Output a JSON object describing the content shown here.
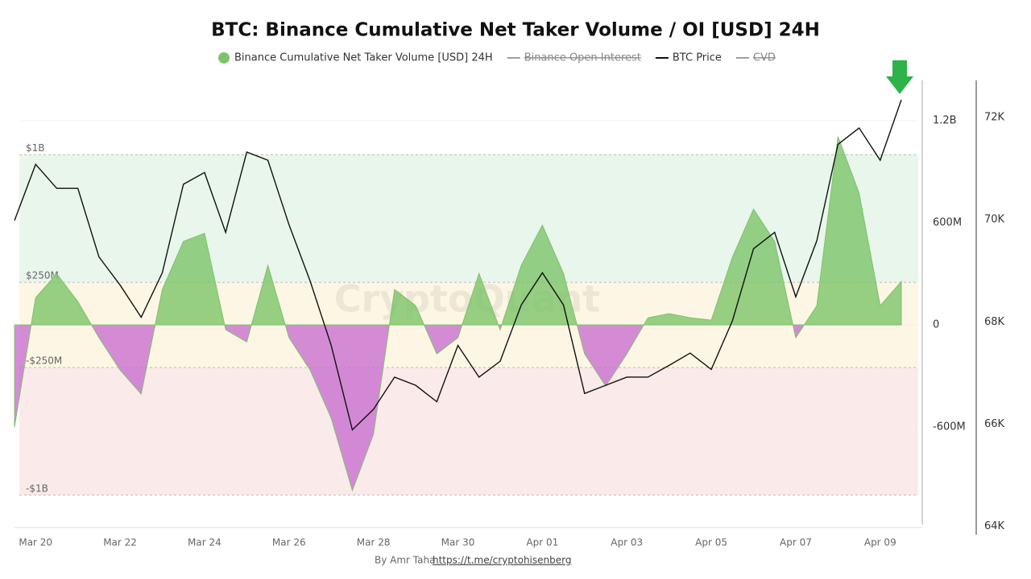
{
  "chart_data": {
    "type": "area-line",
    "title": "BTC: Binance Cumulative Net Taker Volume / OI [USD] 24H",
    "watermark": "CryptoQuant",
    "footer": {
      "author": "By Amr Taha",
      "link": "https://t.me/cryptohisenberg"
    },
    "categories": [
      null,
      "Mar 20",
      null,
      null,
      null,
      "Mar 22",
      null,
      null,
      null,
      "Mar 24",
      null,
      null,
      null,
      "Mar 26",
      null,
      null,
      null,
      "Mar 28",
      null,
      null,
      null,
      "Mar 30",
      null,
      null,
      null,
      "Apr 01",
      null,
      null,
      null,
      "Apr 03",
      null,
      null,
      null,
      "Apr 05",
      null,
      null,
      null,
      "Apr 07",
      null,
      null,
      null,
      "Apr 09",
      null
    ],
    "series": [
      {
        "name": "Binance Cumulative Net Taker Volume [USD] 24H",
        "color": "#7cc46a",
        "negative_color": "#c970d0",
        "visible": true,
        "values": [
          -600000000,
          160000000,
          300000000,
          137000000,
          -75000000,
          -265000000,
          -406000000,
          208000000,
          491000000,
          538000000,
          -28000000,
          -100000000,
          350000000,
          -75000000,
          -265000000,
          -548000000,
          -973000000,
          -643000000,
          208000000,
          113000000,
          -170000000,
          -75000000,
          302000000,
          -28000000,
          350000000,
          586000000,
          302000000,
          -170000000,
          -359000000,
          -170000000,
          42000000,
          66000000,
          42000000,
          28000000,
          397000000,
          680000000,
          491000000,
          -75000000,
          113000000,
          1106000000,
          775000000,
          113000000,
          255000000
        ]
      },
      {
        "name": "Binance Open Interest",
        "color": "#9e9e9e",
        "visible": false
      },
      {
        "name": "BTC Price",
        "color": "#111111",
        "visible": true,
        "axis": "y2",
        "values": [
          69980,
          71080,
          70610,
          70610,
          69270,
          68720,
          68090,
          68960,
          70690,
          70920,
          69750,
          71320,
          71160,
          69900,
          68800,
          67540,
          65890,
          66290,
          66920,
          66760,
          66440,
          67540,
          66920,
          67230,
          68330,
          68960,
          68330,
          66600,
          66760,
          66920,
          66920,
          67150,
          67390,
          67070,
          68020,
          69430,
          69750,
          68490,
          69590,
          71470,
          71790,
          71160,
          72340
        ]
      },
      {
        "name": "CVD",
        "color": "#9e9e9e",
        "visible": false
      }
    ],
    "ylim": [
      -1190000000,
      1436000000
    ],
    "yticks": [
      {
        "value": -600000000,
        "label": "-600M"
      },
      0,
      {
        "value": 600000000,
        "label": "600M"
      },
      {
        "value": 1200000000,
        "label": "1.2B"
      }
    ],
    "y2lim": [
      63980,
      72720
    ],
    "y2ticks": [
      {
        "value": 64000,
        "label": "64K"
      },
      {
        "value": 66000,
        "label": "66K"
      },
      {
        "value": 68000,
        "label": "68K"
      },
      {
        "value": 70000,
        "label": "70K"
      },
      {
        "value": 72000,
        "label": "72K"
      }
    ],
    "bands": [
      {
        "value": 1000000000,
        "label": "$1B"
      },
      {
        "value": 250000000,
        "label": "$250M"
      },
      {
        "value": -250000000,
        "label": "-$250M"
      },
      {
        "value": -1000000000,
        "label": "-$1B"
      }
    ],
    "zone_colors": [
      "#ffffff",
      "#e9f6ec",
      "#fdf6e4",
      "#fbeaea",
      "#ffffff"
    ],
    "grid": true
  }
}
